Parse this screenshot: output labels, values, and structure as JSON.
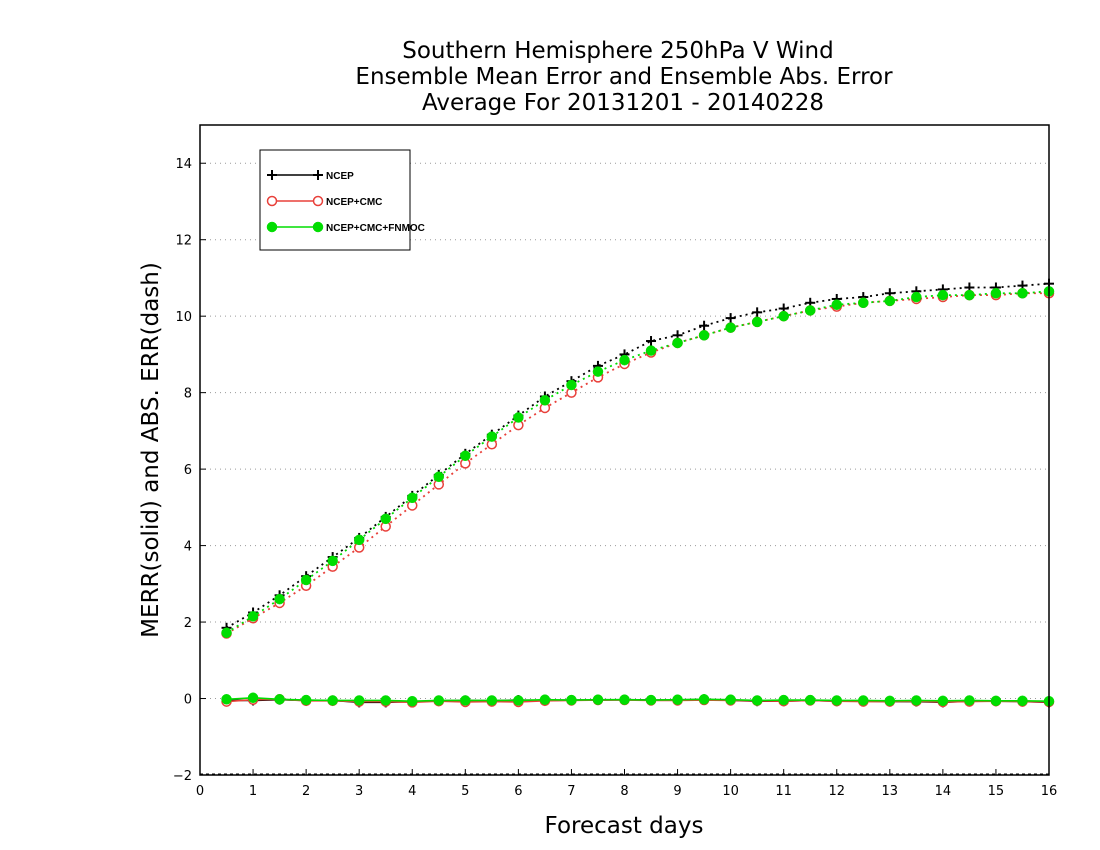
{
  "chart_data": {
    "type": "line",
    "title": [
      "Southern Hemisphere 250hPa V Wind",
      "Ensemble Mean Error and Ensemble Abs. Error",
      "Average For 20131201 - 20140228"
    ],
    "xlabel": "Forecast days",
    "ylabel": "MERR(solid) and ABS. ERR(dash)",
    "xlim": [
      0,
      16
    ],
    "ylim": [
      -2,
      15
    ],
    "xticks": [
      0,
      1,
      2,
      3,
      4,
      5,
      6,
      7,
      8,
      9,
      10,
      11,
      12,
      13,
      14,
      15,
      16
    ],
    "yticks": [
      -2,
      0,
      2,
      4,
      6,
      8,
      10,
      12,
      14
    ],
    "grid": "horizontal dotted",
    "legend_position": "top-left",
    "x": [
      0.5,
      1,
      1.5,
      2,
      2.5,
      3,
      3.5,
      4,
      4.5,
      5,
      5.5,
      6,
      6.5,
      7,
      7.5,
      8,
      8.5,
      9,
      9.5,
      10,
      10.5,
      11,
      11.5,
      12,
      12.5,
      13,
      13.5,
      14,
      14.5,
      15,
      15.5,
      16
    ],
    "series": [
      {
        "name": "NCEP",
        "color": "#000000",
        "marker": "plus",
        "abs_error": [
          1.85,
          2.25,
          2.7,
          3.2,
          3.7,
          4.2,
          4.75,
          5.3,
          5.85,
          6.4,
          6.9,
          7.4,
          7.9,
          8.3,
          8.7,
          9.0,
          9.35,
          9.5,
          9.75,
          9.95,
          10.1,
          10.2,
          10.35,
          10.45,
          10.5,
          10.6,
          10.65,
          10.7,
          10.75,
          10.75,
          10.8,
          10.85
        ],
        "mean_error": [
          -0.05,
          -0.05,
          -0.03,
          -0.05,
          -0.05,
          -0.1,
          -0.1,
          -0.08,
          -0.06,
          -0.05,
          -0.06,
          -0.04,
          -0.05,
          -0.04,
          -0.04,
          -0.03,
          -0.04,
          -0.04,
          -0.02,
          -0.05,
          -0.07,
          -0.07,
          -0.05,
          -0.07,
          -0.07,
          -0.08,
          -0.08,
          -0.1,
          -0.07,
          -0.07,
          -0.08,
          -0.1
        ]
      },
      {
        "name": "NCEP+CMC",
        "color": "#e8403a",
        "marker": "open-circle",
        "abs_error": [
          1.7,
          2.1,
          2.5,
          2.95,
          3.45,
          3.95,
          4.5,
          5.05,
          5.6,
          6.15,
          6.65,
          7.15,
          7.6,
          8.0,
          8.4,
          8.75,
          9.05,
          9.3,
          9.5,
          9.7,
          9.85,
          10.0,
          10.15,
          10.25,
          10.35,
          10.4,
          10.45,
          10.5,
          10.55,
          10.55,
          10.6,
          10.6
        ],
        "mean_error": [
          -0.08,
          -0.03,
          -0.02,
          -0.06,
          -0.06,
          -0.08,
          -0.08,
          -0.1,
          -0.07,
          -0.09,
          -0.08,
          -0.09,
          -0.06,
          -0.05,
          -0.04,
          -0.04,
          -0.05,
          -0.05,
          -0.04,
          -0.05,
          -0.06,
          -0.07,
          -0.05,
          -0.07,
          -0.08,
          -0.08,
          -0.07,
          -0.09,
          -0.08,
          -0.07,
          -0.08,
          -0.09
        ]
      },
      {
        "name": "NCEP+CMC+FNMOC",
        "color": "#00dd00",
        "marker": "filled-circle",
        "abs_error": [
          1.72,
          2.15,
          2.6,
          3.1,
          3.6,
          4.15,
          4.7,
          5.25,
          5.8,
          6.35,
          6.85,
          7.35,
          7.8,
          8.2,
          8.55,
          8.85,
          9.1,
          9.3,
          9.5,
          9.7,
          9.85,
          10.0,
          10.15,
          10.3,
          10.35,
          10.4,
          10.5,
          10.55,
          10.55,
          10.6,
          10.6,
          10.65
        ],
        "mean_error": [
          -0.02,
          0.02,
          -0.02,
          -0.04,
          -0.05,
          -0.05,
          -0.05,
          -0.07,
          -0.05,
          -0.05,
          -0.05,
          -0.05,
          -0.03,
          -0.04,
          -0.03,
          -0.03,
          -0.04,
          -0.03,
          -0.02,
          -0.03,
          -0.05,
          -0.04,
          -0.04,
          -0.05,
          -0.05,
          -0.06,
          -0.05,
          -0.06,
          -0.05,
          -0.06,
          -0.06,
          -0.07
        ]
      }
    ]
  }
}
